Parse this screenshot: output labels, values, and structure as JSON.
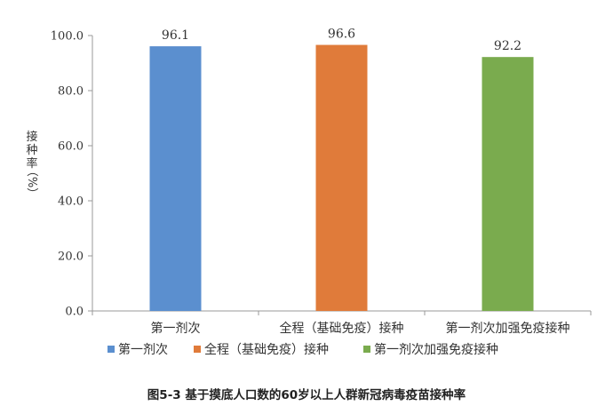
{
  "chart_data": {
    "type": "bar",
    "categories": [
      "第一剂次",
      "全程（基础免疫）接种",
      "第一剂次加强免疫接种"
    ],
    "values": [
      96.1,
      96.6,
      92.2
    ],
    "value_labels": [
      "96.1",
      "96.6",
      "92.2"
    ],
    "colors": [
      "#5b8fcf",
      "#e07b3a",
      "#7aab4e"
    ],
    "ylabel": "接种率（%）",
    "ylabel_main": "接种率",
    "ylabel_unit": "（%）",
    "ylim": [
      0,
      100
    ],
    "yticks": [
      0,
      20,
      40,
      60,
      80,
      100
    ],
    "ytick_labels": [
      "0.0",
      "20.0",
      "40.0",
      "60.0",
      "80.0",
      "100.0"
    ],
    "legend": [
      "第一剂次",
      "全程（基础免疫）接种",
      "第一剂次加强免疫接种"
    ],
    "legend_position": "bottom",
    "grid": false
  },
  "caption": "图5-3 基于摸底人口数的60岁以上人群新冠病毒疫苗接种率"
}
